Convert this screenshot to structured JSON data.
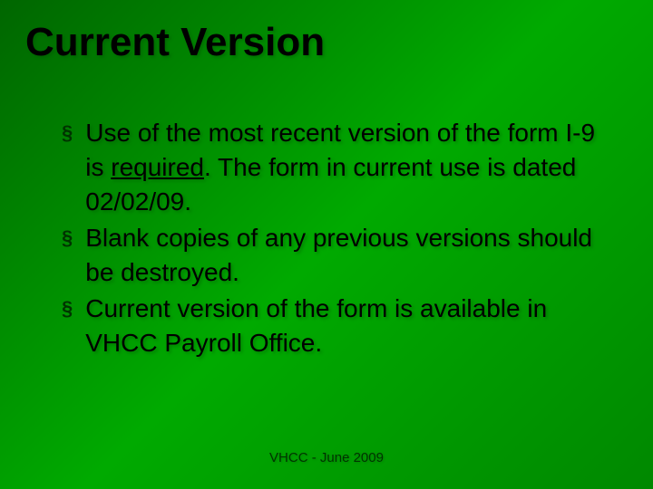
{
  "title": "Current Version",
  "bullets": [
    {
      "pre": "Use of the most recent version of the form I-9 is ",
      "underlined": "required",
      "post": ".  The form in current use is dated 02/02/09."
    },
    {
      "pre": "Blank copies of any previous versions should be destroyed.",
      "underlined": "",
      "post": ""
    },
    {
      "pre": "Current version of the form is available in VHCC Payroll Office.",
      "underlined": "",
      "post": ""
    }
  ],
  "footer": "VHCC - June 2009",
  "style": {
    "background_gradient": [
      "#006600",
      "#00aa00",
      "#008800"
    ],
    "title_color": "#000000",
    "title_fontsize": 44,
    "title_fontweight": 900,
    "bullet_color": "#003300",
    "bullet_glyph": "§",
    "body_color": "#000000",
    "body_fontsize": 28,
    "body_lineheight": 38,
    "footer_color": "#003300",
    "footer_fontsize": 15,
    "shadow_color": "rgba(0,80,0,0.4)"
  }
}
